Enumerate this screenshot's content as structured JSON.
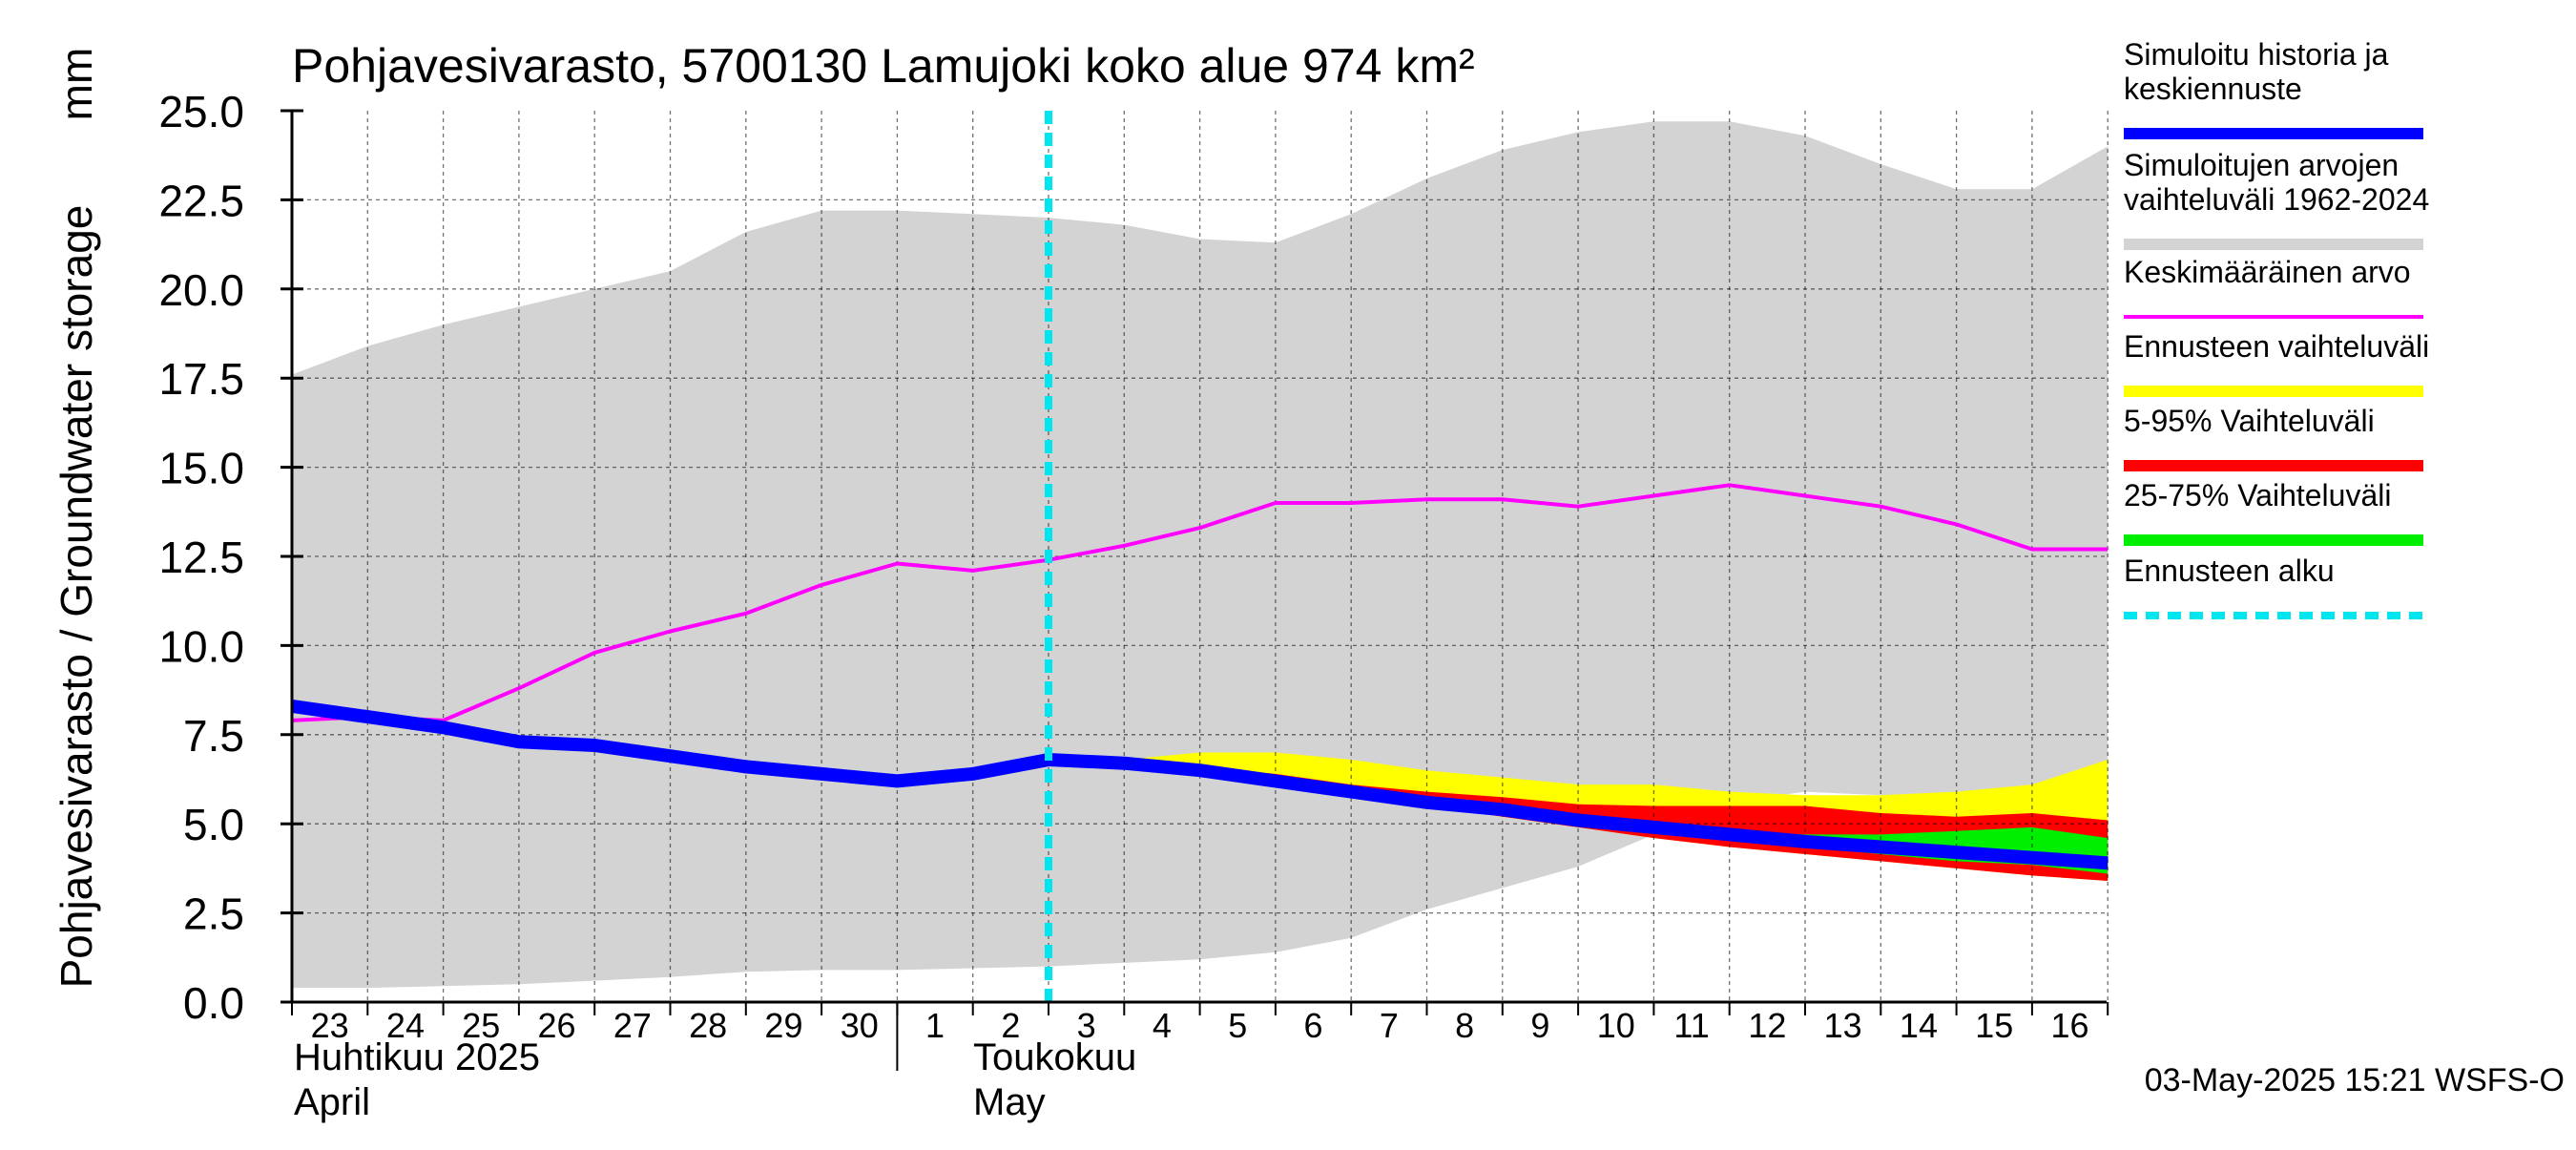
{
  "chart_data": {
    "type": "line",
    "title": "Pohjavesivarasto, 5700130 Lamujoki koko alue 974 km²",
    "ylabel": "Pohjavesivarasto / Groundwater storage",
    "yunit": "mm",
    "ylim": [
      0,
      25
    ],
    "yticks": [
      "0.0",
      "2.5",
      "5.0",
      "7.5",
      "10.0",
      "12.5",
      "15.0",
      "17.5",
      "20.0",
      "22.5",
      "25.0"
    ],
    "grid": true,
    "legend_position": "right",
    "x_dates": [
      "2025-04-23",
      "2025-04-24",
      "2025-04-25",
      "2025-04-26",
      "2025-04-27",
      "2025-04-28",
      "2025-04-29",
      "2025-04-30",
      "2025-05-01",
      "2025-05-02",
      "2025-05-03",
      "2025-05-04",
      "2025-05-05",
      "2025-05-06",
      "2025-05-07",
      "2025-05-08",
      "2025-05-09",
      "2025-05-10",
      "2025-05-11",
      "2025-05-12",
      "2025-05-13",
      "2025-05-14",
      "2025-05-15",
      "2025-05-16",
      "2025-05-17"
    ],
    "x_tick_labels": [
      "23",
      "24",
      "25",
      "26",
      "27",
      "28",
      "29",
      "30",
      "1",
      "2",
      "3",
      "4",
      "5",
      "6",
      "7",
      "8",
      "9",
      "10",
      "11",
      "12",
      "13",
      "14",
      "15",
      "16"
    ],
    "month_labels": [
      {
        "fi": "Huhtikuu  2025",
        "en": "April"
      },
      {
        "fi": "Toukokuu",
        "en": "May"
      }
    ],
    "forecast_start": "2025-05-03",
    "series": [
      {
        "name": "Simuloitujen arvojen vaihteluväli 1962-2024",
        "kind": "band",
        "color": "#d3d3d3",
        "upper": [
          17.6,
          18.4,
          19.0,
          19.5,
          20.0,
          20.5,
          21.6,
          22.2,
          22.2,
          22.1,
          22.0,
          21.8,
          21.4,
          21.3,
          22.1,
          23.1,
          23.9,
          24.4,
          24.7,
          24.7,
          24.3,
          23.5,
          22.8,
          22.8,
          24.0
        ],
        "lower": [
          0.4,
          0.4,
          0.45,
          0.5,
          0.6,
          0.7,
          0.85,
          0.9,
          0.9,
          0.95,
          1.0,
          1.1,
          1.2,
          1.4,
          1.8,
          2.6,
          3.2,
          3.8,
          4.7,
          5.6,
          5.9,
          5.8,
          5.5,
          5.4,
          5.2
        ]
      },
      {
        "name": "Ennusteen vaihteluväli",
        "kind": "band",
        "color": "#ffff00",
        "x_from": "2025-05-03",
        "upper": [
          6.8,
          6.8,
          7.0,
          7.0,
          6.8,
          6.5,
          6.3,
          6.1,
          6.1,
          5.9,
          5.8,
          5.8,
          5.9,
          6.1,
          6.8
        ],
        "lower": [
          6.8,
          6.7,
          6.4,
          6.1,
          5.8,
          5.5,
          5.2,
          4.9,
          4.6,
          4.35,
          4.15,
          3.95,
          3.75,
          3.55,
          3.4
        ]
      },
      {
        "name": "5-95% Vaihteluväli",
        "kind": "band",
        "color": "#ff0000",
        "x_from": "2025-05-03",
        "upper": [
          6.8,
          6.75,
          6.6,
          6.4,
          6.1,
          5.9,
          5.75,
          5.55,
          5.5,
          5.5,
          5.5,
          5.3,
          5.2,
          5.3,
          5.1
        ],
        "lower": [
          6.8,
          6.7,
          6.45,
          6.15,
          5.85,
          5.5,
          5.2,
          4.9,
          4.6,
          4.35,
          4.15,
          3.95,
          3.75,
          3.55,
          3.4
        ]
      },
      {
        "name": "25-75% Vaihteluväli",
        "kind": "band",
        "color": "#00ee00",
        "x_from": "2025-05-03",
        "upper": [
          6.8,
          6.7,
          6.5,
          6.25,
          5.95,
          5.65,
          5.35,
          5.1,
          4.85,
          4.75,
          4.7,
          4.7,
          4.8,
          4.9,
          4.6
        ],
        "lower": [
          6.8,
          6.7,
          6.5,
          6.25,
          5.95,
          5.65,
          5.35,
          5.05,
          4.8,
          4.55,
          4.35,
          4.15,
          3.95,
          3.85,
          3.6
        ]
      },
      {
        "name": "Keskimääräinen arvo",
        "kind": "line",
        "color": "#ff00ff",
        "values": [
          7.9,
          8.0,
          7.9,
          8.8,
          9.8,
          10.4,
          10.9,
          11.7,
          12.3,
          12.1,
          12.4,
          12.8,
          13.3,
          14.0,
          14.0,
          14.1,
          14.1,
          13.9,
          14.2,
          14.5,
          14.2,
          13.9,
          13.4,
          12.7,
          12.7
        ]
      },
      {
        "name": "Simuloitu historia ja keskiennuste",
        "kind": "line",
        "color": "#0000ff",
        "values": [
          8.3,
          8.0,
          7.7,
          7.3,
          7.2,
          6.9,
          6.6,
          6.4,
          6.2,
          6.4,
          6.8,
          6.7,
          6.5,
          6.2,
          5.9,
          5.6,
          5.4,
          5.1,
          4.9,
          4.7,
          4.5,
          4.35,
          4.2,
          4.05,
          3.9
        ]
      }
    ],
    "legend": [
      {
        "label": "Simuloitu historia ja keskiennuste",
        "color": "#0000ff",
        "style": "thick"
      },
      {
        "label": "Simuloitujen arvojen vaihteluväli 1962-2024",
        "color": "#d3d3d3",
        "style": "thick"
      },
      {
        "label": "Keskimääräinen arvo",
        "color": "#ff00ff",
        "style": "thin"
      },
      {
        "label": "Ennusteen vaihteluväli",
        "color": "#ffff00",
        "style": "thick"
      },
      {
        "label": "5-95% Vaihteluväli",
        "color": "#ff0000",
        "style": "thick"
      },
      {
        "label": "25-75% Vaihteluväli",
        "color": "#00ee00",
        "style": "thick"
      },
      {
        "label": "Ennusteen alku",
        "color": "#00e5ee",
        "style": "dashed"
      }
    ],
    "footer": "03-May-2025 15:21 WSFS-O"
  }
}
